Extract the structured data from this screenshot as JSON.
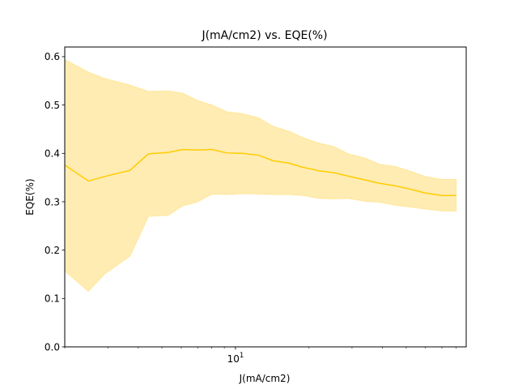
{
  "chart_data": {
    "type": "line",
    "title": "J(mA/cm2) vs. EQE(%)",
    "xlabel": "J(mA/cm2)",
    "ylabel": "EQE(%)",
    "xscale": "log",
    "xlim": [
      2.0,
      88.0
    ],
    "ylim": [
      0.0,
      0.62
    ],
    "grid": false,
    "x_major_ticks": [
      {
        "value": 10,
        "base": "10",
        "exp": "1"
      }
    ],
    "x_minor_ticks": [
      2,
      3,
      4,
      5,
      6,
      7,
      8,
      9,
      20,
      30,
      40,
      50,
      60,
      70,
      80
    ],
    "y_ticks": [
      {
        "value": 0.0,
        "label": "0.0"
      },
      {
        "value": 0.1,
        "label": "0.1"
      },
      {
        "value": 0.2,
        "label": "0.2"
      },
      {
        "value": 0.3,
        "label": "0.3"
      },
      {
        "value": 0.4,
        "label": "0.4"
      },
      {
        "value": 0.5,
        "label": "0.5"
      },
      {
        "value": 0.6,
        "label": "0.6"
      }
    ],
    "colors": {
      "line": "#ffcc00",
      "band": "#ffe699"
    },
    "series": [
      {
        "x": [
          2.0,
          2.5,
          2.9,
          3.7,
          4.4,
          5.3,
          6.1,
          7.0,
          8.0,
          9.2,
          10.7,
          12.5,
          14.2,
          16.5,
          19.0,
          22.0,
          25.3,
          29.0,
          34.0,
          39.0,
          45.0,
          52.0,
          60.0,
          70.0,
          80.0
        ],
        "mean": [
          0.376,
          0.343,
          0.352,
          0.365,
          0.399,
          0.402,
          0.408,
          0.407,
          0.408,
          0.401,
          0.4,
          0.396,
          0.385,
          0.38,
          0.371,
          0.364,
          0.36,
          0.353,
          0.345,
          0.338,
          0.333,
          0.326,
          0.318,
          0.313,
          0.313
        ],
        "upper": [
          0.594,
          0.568,
          0.555,
          0.541,
          0.528,
          0.529,
          0.524,
          0.509,
          0.5,
          0.486,
          0.482,
          0.473,
          0.456,
          0.446,
          0.432,
          0.421,
          0.414,
          0.399,
          0.39,
          0.377,
          0.373,
          0.363,
          0.352,
          0.346,
          0.346
        ],
        "lower": [
          0.157,
          0.115,
          0.15,
          0.188,
          0.27,
          0.272,
          0.292,
          0.3,
          0.316,
          0.315,
          0.317,
          0.316,
          0.315,
          0.315,
          0.313,
          0.307,
          0.306,
          0.307,
          0.301,
          0.299,
          0.293,
          0.289,
          0.285,
          0.281,
          0.281
        ]
      }
    ]
  }
}
